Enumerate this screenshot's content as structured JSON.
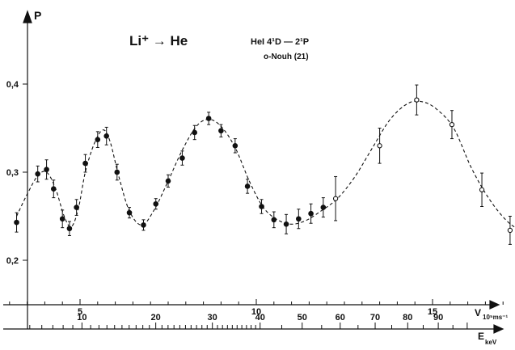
{
  "chart_data": {
    "type": "scatter",
    "title": "Li⁺ → He",
    "legend": {
      "line": "HeI 4¹D — 2¹P",
      "open_label": "o-Nouh (21)"
    },
    "ylabel": "P",
    "ylim": [
      0.17,
      0.47
    ],
    "yticks": [
      {
        "v": 0.2,
        "label": "0,2"
      },
      {
        "v": 0.3,
        "label": "0,3"
      },
      {
        "v": 0.4,
        "label": "0,4"
      }
    ],
    "velocity_axis": {
      "label": "V",
      "unit": "10⁵ms⁻¹",
      "range": [
        2.6,
        17.0
      ],
      "ticks": [
        {
          "v": 5,
          "label": "5"
        },
        {
          "v": 10,
          "label": "10"
        },
        {
          "v": 15,
          "label": "15"
        }
      ]
    },
    "energy_axis": {
      "label": "E",
      "unit": "keV",
      "ticks": [
        5,
        6,
        7,
        8,
        9,
        10,
        11,
        12,
        13,
        14,
        15,
        16,
        17,
        18,
        19,
        20,
        21,
        22,
        23,
        24,
        25,
        26,
        27,
        28,
        29,
        30,
        31,
        32,
        33,
        34,
        35,
        36,
        37,
        38,
        39,
        40,
        45,
        50,
        55,
        60,
        65,
        70,
        75,
        80,
        85,
        90,
        95,
        100
      ],
      "labels": [
        {
          "v": 10,
          "label": "10"
        },
        {
          "v": 20,
          "label": "20"
        },
        {
          "v": 30,
          "label": "30"
        },
        {
          "v": 40,
          "label": "40"
        },
        {
          "v": 50,
          "label": "50"
        },
        {
          "v": 60,
          "label": "60"
        },
        {
          "v": 70,
          "label": "70"
        },
        {
          "v": 80,
          "label": "80"
        },
        {
          "v": 90,
          "label": "90"
        }
      ]
    },
    "series": [
      {
        "marker": "filled",
        "points": [
          {
            "x": 3.2,
            "y": 0.243,
            "err": 0.011
          },
          {
            "x": 3.8,
            "y": 0.298,
            "err": 0.009
          },
          {
            "x": 4.05,
            "y": 0.303,
            "err": 0.011
          },
          {
            "x": 4.25,
            "y": 0.281,
            "err": 0.01
          },
          {
            "x": 4.5,
            "y": 0.247,
            "err": 0.01
          },
          {
            "x": 4.7,
            "y": 0.236,
            "err": 0.008
          },
          {
            "x": 4.9,
            "y": 0.26,
            "err": 0.009
          },
          {
            "x": 5.15,
            "y": 0.31,
            "err": 0.01
          },
          {
            "x": 5.5,
            "y": 0.337,
            "err": 0.009
          },
          {
            "x": 5.75,
            "y": 0.341,
            "err": 0.01
          },
          {
            "x": 6.05,
            "y": 0.3,
            "err": 0.009
          },
          {
            "x": 6.4,
            "y": 0.254,
            "err": 0.006
          },
          {
            "x": 6.8,
            "y": 0.24,
            "err": 0.006
          },
          {
            "x": 7.15,
            "y": 0.264,
            "err": 0.006
          },
          {
            "x": 7.5,
            "y": 0.29,
            "err": 0.007
          },
          {
            "x": 7.9,
            "y": 0.316,
            "err": 0.008
          },
          {
            "x": 8.25,
            "y": 0.345,
            "err": 0.008
          },
          {
            "x": 8.65,
            "y": 0.361,
            "err": 0.007
          },
          {
            "x": 9.0,
            "y": 0.347,
            "err": 0.007
          },
          {
            "x": 9.4,
            "y": 0.33,
            "err": 0.008
          },
          {
            "x": 9.75,
            "y": 0.284,
            "err": 0.008
          },
          {
            "x": 10.15,
            "y": 0.261,
            "err": 0.008
          },
          {
            "x": 10.5,
            "y": 0.246,
            "err": 0.009
          },
          {
            "x": 10.85,
            "y": 0.241,
            "err": 0.011
          },
          {
            "x": 11.2,
            "y": 0.247,
            "err": 0.011
          },
          {
            "x": 11.55,
            "y": 0.253,
            "err": 0.011
          },
          {
            "x": 11.9,
            "y": 0.26,
            "err": 0.011
          }
        ]
      },
      {
        "marker": "open",
        "points": [
          {
            "x": 12.25,
            "y": 0.27,
            "err": 0.025
          },
          {
            "x": 13.5,
            "y": 0.33,
            "err": 0.02
          },
          {
            "x": 14.55,
            "y": 0.382,
            "err": 0.017
          },
          {
            "x": 15.55,
            "y": 0.354,
            "err": 0.016
          },
          {
            "x": 16.4,
            "y": 0.28,
            "err": 0.019
          },
          {
            "x": 17.2,
            "y": 0.234,
            "err": 0.016
          },
          {
            "x": 18.0,
            "y": 0.233,
            "err": 0.014
          }
        ]
      }
    ],
    "fit_curve": [
      [
        3.2,
        0.25
      ],
      [
        3.5,
        0.275
      ],
      [
        3.8,
        0.296
      ],
      [
        4.05,
        0.3
      ],
      [
        4.3,
        0.282
      ],
      [
        4.55,
        0.25
      ],
      [
        4.75,
        0.238
      ],
      [
        4.95,
        0.258
      ],
      [
        5.15,
        0.3
      ],
      [
        5.4,
        0.332
      ],
      [
        5.65,
        0.348
      ],
      [
        5.85,
        0.335
      ],
      [
        6.1,
        0.295
      ],
      [
        6.4,
        0.256
      ],
      [
        6.75,
        0.24
      ],
      [
        7.1,
        0.257
      ],
      [
        7.5,
        0.29
      ],
      [
        7.9,
        0.325
      ],
      [
        8.3,
        0.352
      ],
      [
        8.65,
        0.36
      ],
      [
        9.0,
        0.352
      ],
      [
        9.4,
        0.328
      ],
      [
        9.8,
        0.29
      ],
      [
        10.2,
        0.26
      ],
      [
        10.6,
        0.246
      ],
      [
        11.0,
        0.241
      ],
      [
        11.4,
        0.245
      ],
      [
        11.8,
        0.255
      ],
      [
        12.3,
        0.27
      ],
      [
        12.8,
        0.295
      ],
      [
        13.3,
        0.328
      ],
      [
        13.8,
        0.36
      ],
      [
        14.3,
        0.378
      ],
      [
        14.7,
        0.38
      ],
      [
        15.1,
        0.372
      ],
      [
        15.6,
        0.35
      ],
      [
        16.1,
        0.305
      ],
      [
        16.6,
        0.27
      ],
      [
        17.1,
        0.245
      ],
      [
        17.5,
        0.234
      ],
      [
        17.85,
        0.23
      ],
      [
        18.0,
        0.231
      ]
    ]
  }
}
